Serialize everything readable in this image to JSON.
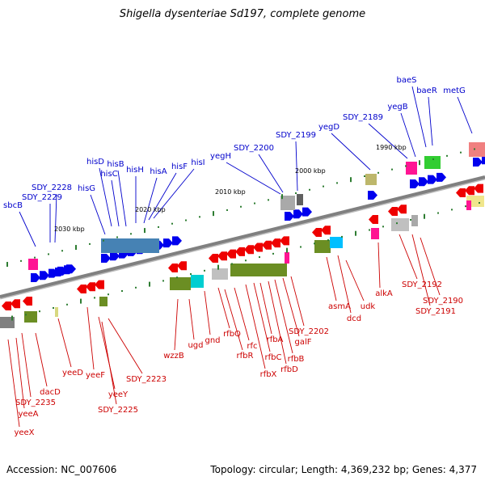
{
  "title": "Shigella dysenteriae Sd197, complete genome",
  "footer": {
    "accession": "Accession: NC_007606",
    "summary": "Topology: circular; Length: 4,369,232 bp; Genes: 4,377"
  },
  "colors": {
    "upper_label": "#0000cc",
    "lower_label": "#cc0000",
    "backbone": "#808080"
  },
  "kbp_ticks": [
    "2030 kbp",
    "2020 kbp",
    "2010 kbp",
    "2000 kbp",
    "1990 kbp"
  ],
  "upper_labels": [
    "sbcB",
    "SDY_2229",
    "SDY_2228",
    "hisG",
    "hisD",
    "hisC",
    "hisB",
    "hisH",
    "hisA",
    "hisF",
    "hisI",
    "yegH",
    "SDY_2200",
    "SDY_2199",
    "yegD",
    "SDY_2189",
    "yegB",
    "baeS",
    "baeR",
    "metG"
  ],
  "lower_labels": [
    "yeeX",
    "yeeA",
    "SDY_2235",
    "dacD",
    "yeeD",
    "yeeF",
    "yeeY",
    "SDY_2225",
    "SDY_2223",
    "wzzB",
    "ugd",
    "gnd",
    "rfbQ",
    "rfbR",
    "rfc",
    "rfbX",
    "rfbC",
    "rfbA",
    "rfbD",
    "rfbB",
    "galF",
    "SDY_2202",
    "asmA",
    "dcd",
    "udk",
    "alkA",
    "SDY_2192",
    "SDY_2191",
    "SDY_2190"
  ]
}
